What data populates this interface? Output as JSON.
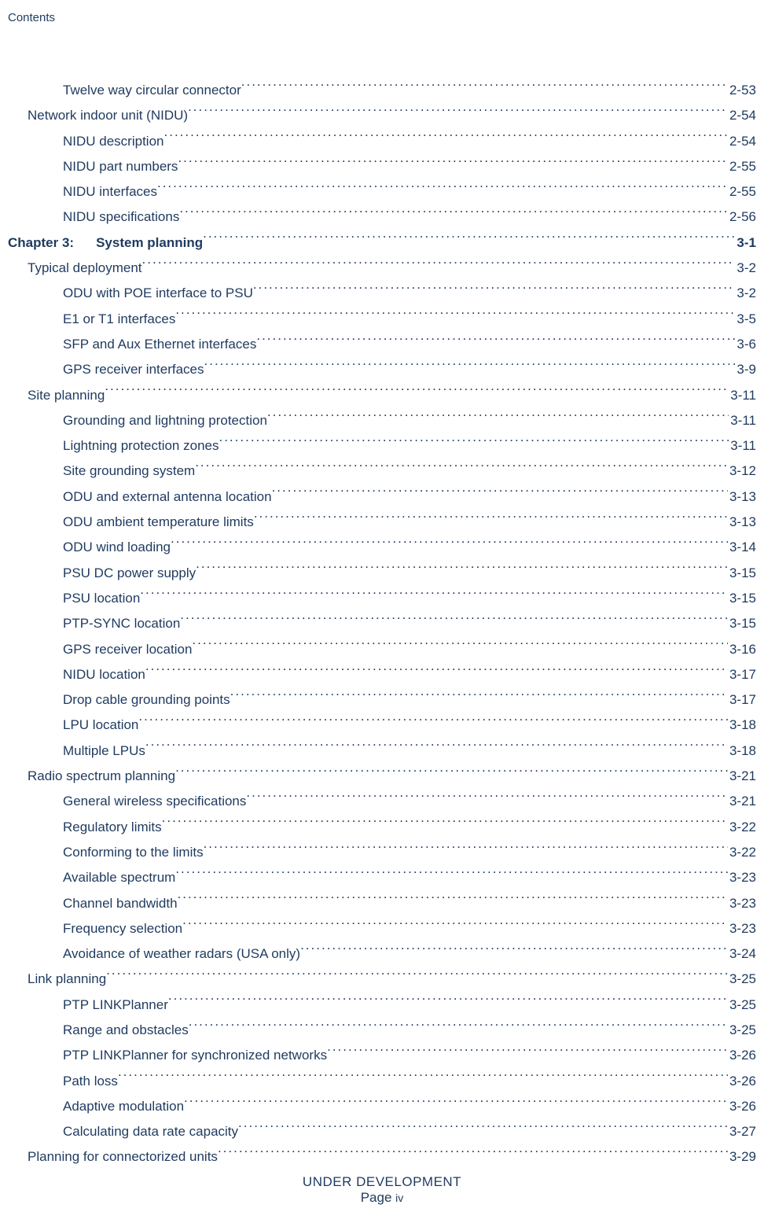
{
  "header": "Contents",
  "footer": {
    "line1": "UNDER DEVELOPMENT",
    "line2_prefix": "Page ",
    "line2_roman": "iv"
  },
  "entries": [
    {
      "level": 2,
      "title": "Twelve way circular connector ",
      "page": "2-53",
      "bold": false
    },
    {
      "level": 1,
      "title": "Network indoor unit (NIDU) ",
      "page": "2-54",
      "bold": false
    },
    {
      "level": 2,
      "title": "NIDU description ",
      "page": "2-54",
      "bold": false
    },
    {
      "level": 2,
      "title": "NIDU part numbers ",
      "page": "2-55",
      "bold": false
    },
    {
      "level": 2,
      "title": "NIDU interfaces ",
      "page": "2-55",
      "bold": false
    },
    {
      "level": 2,
      "title": "NIDU specifications ",
      "page": "2-56",
      "bold": false
    },
    {
      "level": 0,
      "chlabel": "Chapter 3:",
      "title": "System planning ",
      "page": " 3-1",
      "bold": true
    },
    {
      "level": 1,
      "title": "Typical deployment ",
      "page": "3-2",
      "bold": false
    },
    {
      "level": 2,
      "title": "ODU with POE interface to PSU ",
      "page": "3-2",
      "bold": false
    },
    {
      "level": 2,
      "title": "E1 or T1 interfaces",
      "page": "3-5",
      "bold": false
    },
    {
      "level": 2,
      "title": "SFP and Aux Ethernet interfaces ",
      "page": "3-6",
      "bold": false
    },
    {
      "level": 2,
      "title": "GPS receiver interfaces",
      "page": "3-9",
      "bold": false
    },
    {
      "level": 1,
      "title": "Site planning",
      "page": "3-11",
      "bold": false
    },
    {
      "level": 2,
      "title": "Grounding and lightning protection",
      "page": "3-11",
      "bold": false
    },
    {
      "level": 2,
      "title": "Lightning protection zones ",
      "page": "3-11",
      "bold": false
    },
    {
      "level": 2,
      "title": "Site grounding system",
      "page": "3-12",
      "bold": false
    },
    {
      "level": 2,
      "title": "ODU and external antenna location ",
      "page": "3-13",
      "bold": false
    },
    {
      "level": 2,
      "title": "ODU ambient temperature limits ",
      "page": "3-13",
      "bold": false
    },
    {
      "level": 2,
      "title": "ODU wind loading ",
      "page": "3-14",
      "bold": false
    },
    {
      "level": 2,
      "title": "PSU DC power supply",
      "page": "3-15",
      "bold": false
    },
    {
      "level": 2,
      "title": "PSU location ",
      "page": "3-15",
      "bold": false
    },
    {
      "level": 2,
      "title": "PTP-SYNC location ",
      "page": "3-15",
      "bold": false
    },
    {
      "level": 2,
      "title": "GPS receiver location",
      "page": "3-16",
      "bold": false
    },
    {
      "level": 2,
      "title": "NIDU location ",
      "page": "3-17",
      "bold": false
    },
    {
      "level": 2,
      "title": "Drop cable grounding points ",
      "page": "3-17",
      "bold": false
    },
    {
      "level": 2,
      "title": "LPU location ",
      "page": "3-18",
      "bold": false
    },
    {
      "level": 2,
      "title": "Multiple LPUs ",
      "page": "3-18",
      "bold": false
    },
    {
      "level": 1,
      "title": "Radio spectrum planning ",
      "page": "3-21",
      "bold": false
    },
    {
      "level": 2,
      "title": "General wireless specifications ",
      "page": "3-21",
      "bold": false
    },
    {
      "level": 2,
      "title": "Regulatory limits ",
      "page": "3-22",
      "bold": false
    },
    {
      "level": 2,
      "title": "Conforming to the limits",
      "page": "3-22",
      "bold": false
    },
    {
      "level": 2,
      "title": "Available spectrum ",
      "page": "3-23",
      "bold": false
    },
    {
      "level": 2,
      "title": "Channel bandwidth ",
      "page": "3-23",
      "bold": false
    },
    {
      "level": 2,
      "title": "Frequency selection ",
      "page": "3-23",
      "bold": false
    },
    {
      "level": 2,
      "title": "Avoidance of weather radars (USA only) ",
      "page": "3-24",
      "bold": false
    },
    {
      "level": 1,
      "title": "Link planning ",
      "page": "3-25",
      "bold": false
    },
    {
      "level": 2,
      "title": "PTP LINKPlanner ",
      "page": "3-25",
      "bold": false
    },
    {
      "level": 2,
      "title": "Range and obstacles ",
      "page": "3-25",
      "bold": false
    },
    {
      "level": 2,
      "title": "PTP LINKPlanner for synchronized networks ",
      "page": "3-26",
      "bold": false
    },
    {
      "level": 2,
      "title": "Path loss ",
      "page": "3-26",
      "bold": false
    },
    {
      "level": 2,
      "title": "Adaptive modulation ",
      "page": "3-26",
      "bold": false
    },
    {
      "level": 2,
      "title": "Calculating data rate capacity ",
      "page": "3-27",
      "bold": false
    },
    {
      "level": 1,
      "title": "Planning for connectorized units ",
      "page": "3-29",
      "bold": false
    }
  ]
}
